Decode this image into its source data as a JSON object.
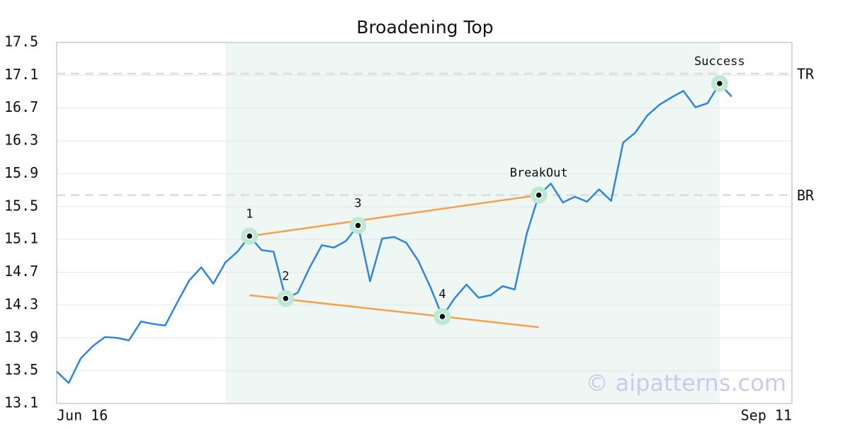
{
  "chart_data": {
    "type": "line",
    "title": "Broadening Top",
    "x": [
      0,
      1,
      2,
      3,
      4,
      5,
      6,
      7,
      8,
      9,
      10,
      11,
      12,
      13,
      14,
      15,
      16,
      17,
      18,
      19,
      20,
      21,
      22,
      23,
      24,
      25,
      26,
      27,
      28,
      29,
      30,
      31,
      32,
      33,
      34,
      35,
      36,
      37,
      38,
      39,
      40,
      41,
      42,
      43,
      44,
      45,
      46,
      47,
      48,
      49,
      50,
      51,
      52,
      53,
      54,
      55,
      56
    ],
    "values": [
      13.49,
      13.35,
      13.65,
      13.8,
      13.91,
      13.9,
      13.87,
      14.1,
      14.07,
      14.05,
      14.33,
      14.6,
      14.76,
      14.56,
      14.82,
      14.95,
      15.14,
      14.97,
      14.95,
      14.38,
      14.45,
      14.76,
      15.03,
      15.0,
      15.08,
      15.27,
      14.59,
      15.11,
      15.13,
      15.06,
      14.84,
      14.52,
      14.16,
      14.38,
      14.55,
      14.39,
      14.42,
      14.53,
      14.49,
      15.17,
      15.64,
      15.78,
      15.55,
      15.62,
      15.56,
      15.71,
      15.57,
      16.28,
      16.4,
      16.61,
      16.74,
      16.83,
      16.91,
      16.71,
      16.76,
      17.0,
      16.84
    ],
    "color": "#2e86de",
    "xlim": [
      0,
      61
    ],
    "xticks": [
      {
        "value": 0,
        "label": "Jun 16"
      },
      {
        "value": 61,
        "label": "Sep 11"
      }
    ],
    "ylim": [
      13.1,
      17.5
    ],
    "yticks": [
      13.1,
      13.5,
      13.9,
      14.3,
      14.7,
      15.1,
      15.5,
      15.9,
      16.3,
      16.7,
      17.1,
      17.5
    ],
    "grid": true,
    "shade": [
      14,
      55
    ],
    "trend_lines": [
      {
        "x": [
          16,
          40
        ],
        "y": [
          15.14,
          15.64
        ],
        "color": "#f5a04a"
      },
      {
        "x": [
          16,
          40
        ],
        "y": [
          14.42,
          14.03
        ],
        "color": "#f5a04a"
      }
    ],
    "levels": [
      {
        "value": 17.12,
        "label": "TR"
      },
      {
        "value": 15.64,
        "label": "BR"
      }
    ],
    "annotations": [
      {
        "x": 16,
        "label": "1"
      },
      {
        "x": 19,
        "label": "2"
      },
      {
        "x": 25,
        "label": "3"
      },
      {
        "x": 32,
        "label": "4"
      },
      {
        "x": 40,
        "label": "BreakOut"
      },
      {
        "x": 55,
        "label": "Success"
      }
    ],
    "watermark": "© aipatterns.com"
  }
}
